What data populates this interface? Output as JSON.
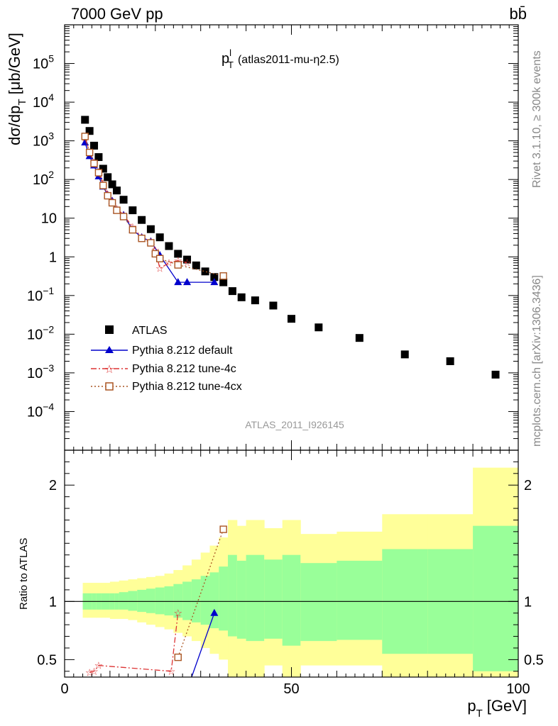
{
  "header": {
    "left_title": "7000 GeV pp",
    "right_title": "bb̄",
    "side_label_top": "Rivet 3.1.10, ≥ 300k events",
    "side_label_bottom": "mcplots.cern.ch [arXiv:1306.3436]"
  },
  "chart_data": {
    "type": "scatter",
    "title": "p_T^l (atlas2011-mu-η2.5)",
    "title_main": "p",
    "title_sub": "T",
    "title_sup": "l",
    "title_rest": "(atlas2011-mu-η2.5)",
    "analysis_label": "ATLAS_2011_I926145",
    "xlabel": "p_T [GeV]",
    "xlabel_main": "p",
    "xlabel_sub": "T",
    "xlabel_rest": "[GeV]",
    "ylabel": "dσ/dp_T [μb/GeV]",
    "ylabel_main": "dσ/dp",
    "ylabel_sub": "T",
    "ylabel_rest": "[μb/GeV]",
    "ratio_ylabel": "Ratio to ATLAS",
    "xlim": [
      0,
      100
    ],
    "ylim": [
      1e-05,
      1000000.0
    ],
    "yscale": "log",
    "ratio_ylim": [
      0.35,
      2.3
    ],
    "x_ticks": [
      {
        "v": 0,
        "label": "0"
      },
      {
        "v": 50,
        "label": "50"
      },
      {
        "v": 100,
        "label": "100"
      }
    ],
    "y_ticks": [
      {
        "v": 0.0001,
        "base": "10",
        "exp": "−4"
      },
      {
        "v": 0.001,
        "base": "10",
        "exp": "−3"
      },
      {
        "v": 0.01,
        "base": "10",
        "exp": "−2"
      },
      {
        "v": 0.1,
        "base": "10",
        "exp": "−1"
      },
      {
        "v": 1,
        "base": "1",
        "exp": ""
      },
      {
        "v": 10,
        "base": "10",
        "exp": ""
      },
      {
        "v": 100,
        "base": "10",
        "exp": "2"
      },
      {
        "v": 1000,
        "base": "10",
        "exp": "3"
      },
      {
        "v": 10000,
        "base": "10",
        "exp": "4"
      },
      {
        "v": 100000,
        "base": "10",
        "exp": "5"
      }
    ],
    "ratio_ticks": [
      {
        "v": 0.5,
        "label": "0.5"
      },
      {
        "v": 1,
        "label": "1"
      },
      {
        "v": 2,
        "label": "2"
      }
    ],
    "legend_position": "middle-left",
    "series": [
      {
        "name": "ATLAS",
        "color": "#000000",
        "marker": "square",
        "x": [
          4.5,
          5.5,
          6.5,
          7.5,
          8.5,
          9.5,
          10.5,
          11.5,
          13,
          15,
          17,
          19,
          21,
          23,
          25,
          27,
          29,
          31,
          33,
          35,
          37,
          39,
          42,
          46,
          50,
          56,
          65,
          75,
          85,
          95
        ],
        "y": [
          3500,
          1800,
          750,
          380,
          190,
          115,
          75,
          52,
          30,
          16,
          9,
          5.2,
          3.2,
          1.9,
          1.2,
          0.85,
          0.6,
          0.42,
          0.3,
          0.22,
          0.13,
          0.09,
          0.075,
          0.055,
          0.025,
          0.015,
          0.008,
          0.003,
          0.002,
          0.0009
        ]
      },
      {
        "name": "Pythia 8.212 default",
        "color": "#0000cc",
        "marker": "triangle",
        "line": "solid",
        "x": [
          4.5,
          5.5,
          6.5,
          7.5,
          8.5,
          9.5,
          10.5,
          11.5,
          13,
          15,
          17,
          19,
          21,
          25,
          27,
          33
        ],
        "y": [
          900,
          400,
          230,
          120,
          65,
          40,
          28,
          16,
          12,
          5,
          3.2,
          2.5,
          1.1,
          0.22,
          0.22,
          0.22
        ]
      },
      {
        "name": "Pythia 8.212 tune-4c",
        "color": "#dd3333",
        "marker": "star",
        "line": "dashdot",
        "x": [
          4.5,
          5.5,
          6.5,
          7.5,
          8.5,
          9.5,
          10.5,
          11.5,
          13,
          15,
          17,
          19,
          20,
          21,
          23,
          25,
          27
        ],
        "y": [
          1200,
          500,
          280,
          160,
          80,
          42,
          28,
          18,
          12,
          6,
          3.2,
          2.5,
          1.5,
          0.5,
          0.7,
          0.8,
          0.7
        ]
      },
      {
        "name": "Pythia 8.212 tune-4cx",
        "color": "#aa5522",
        "marker": "open-square",
        "line": "dotted",
        "x": [
          4.5,
          5.5,
          6.5,
          7.5,
          8.5,
          9.5,
          10.5,
          11.5,
          13,
          15,
          17,
          19,
          20,
          21,
          25,
          35
        ],
        "y": [
          1300,
          500,
          260,
          150,
          70,
          38,
          25,
          16,
          11,
          5,
          3,
          2.3,
          1.2,
          0.9,
          0.62,
          0.32
        ]
      }
    ],
    "ratio_bands": {
      "x_edges": [
        4,
        5,
        6,
        7,
        8,
        9,
        10,
        11,
        12,
        14,
        16,
        18,
        20,
        22,
        24,
        26,
        28,
        30,
        32,
        34,
        36,
        38,
        40,
        44,
        48,
        52,
        60,
        70,
        80,
        90,
        100
      ],
      "green_low": [
        0.93,
        0.93,
        0.93,
        0.93,
        0.93,
        0.93,
        0.93,
        0.93,
        0.93,
        0.92,
        0.91,
        0.9,
        0.89,
        0.88,
        0.86,
        0.84,
        0.82,
        0.8,
        0.77,
        0.75,
        0.7,
        0.68,
        0.66,
        0.68,
        0.62,
        0.66,
        0.67,
        0.55,
        0.55,
        0.4
      ],
      "green_high": [
        1.07,
        1.07,
        1.07,
        1.07,
        1.07,
        1.07,
        1.07,
        1.07,
        1.08,
        1.09,
        1.1,
        1.11,
        1.12,
        1.13,
        1.15,
        1.17,
        1.19,
        1.22,
        1.25,
        1.3,
        1.4,
        1.35,
        1.4,
        1.36,
        1.4,
        1.33,
        1.35,
        1.45,
        1.45,
        1.65
      ],
      "yellow_low": [
        0.86,
        0.86,
        0.86,
        0.86,
        0.86,
        0.86,
        0.85,
        0.85,
        0.85,
        0.84,
        0.82,
        0.8,
        0.78,
        0.76,
        0.73,
        0.7,
        0.66,
        0.6,
        0.55,
        0.5,
        0.35,
        0.35,
        0.35,
        0.45,
        0.35,
        0.45,
        0.45,
        0.35,
        0.35,
        0.35
      ],
      "yellow_high": [
        1.16,
        1.16,
        1.16,
        1.16,
        1.16,
        1.16,
        1.17,
        1.17,
        1.18,
        1.19,
        1.2,
        1.21,
        1.22,
        1.24,
        1.27,
        1.31,
        1.36,
        1.42,
        1.48,
        1.55,
        1.7,
        1.65,
        1.7,
        1.63,
        1.7,
        1.58,
        1.6,
        1.75,
        1.75,
        2.15
      ]
    },
    "ratio_series": [
      {
        "name": "Pythia 8.212 default",
        "x": [
          28,
          33
        ],
        "y": [
          0.35,
          0.9
        ]
      },
      {
        "name": "Pythia 8.212 tune-4c",
        "x": [
          5.5,
          6.5,
          7.5,
          23.5,
          25
        ],
        "y": [
          0.39,
          0.4,
          0.45,
          0.4,
          0.9
        ]
      },
      {
        "name": "Pythia 8.212 tune-4cx",
        "x": [
          25,
          35
        ],
        "y": [
          0.52,
          1.62
        ]
      }
    ]
  }
}
